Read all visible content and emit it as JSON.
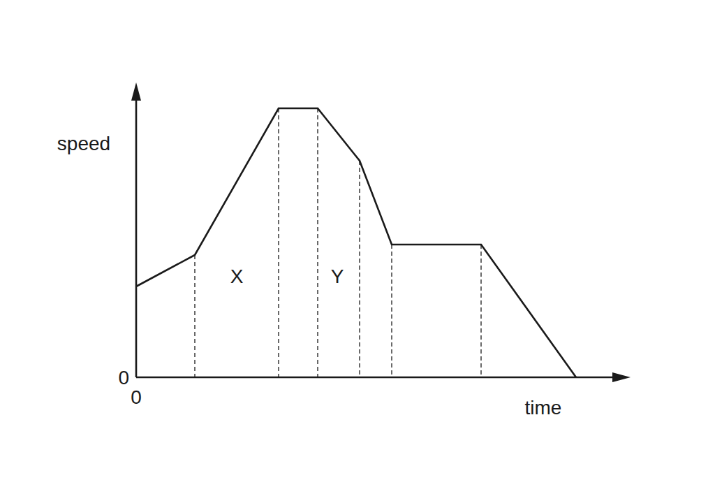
{
  "chart_data": {
    "type": "line",
    "x_label": "time",
    "y_label": "speed",
    "x": [
      0,
      8.4,
      20.4,
      26,
      32,
      36.6,
      49.4,
      63
    ],
    "values": [
      13,
      17.5,
      38.5,
      38.5,
      31,
      19,
      19,
      0
    ],
    "color": "#1a1a1a",
    "xlim": [
      0,
      70.8
    ],
    "ylim": [
      0,
      42.2
    ],
    "xticks": [
      0
    ],
    "yticks": [
      0
    ],
    "grid": false,
    "annotations": [
      {
        "text": "X",
        "x": 14.4,
        "y": 14.5
      },
      {
        "text": "Y",
        "x": 28.8,
        "y": 14.5
      }
    ]
  }
}
